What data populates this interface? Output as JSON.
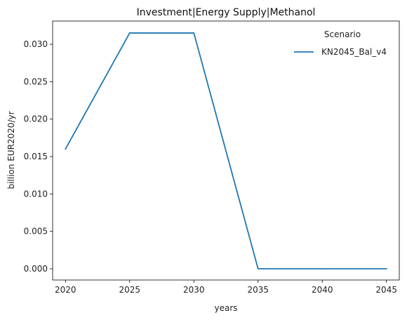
{
  "chart_data": {
    "type": "line",
    "title": "Investment|Energy Supply|Methanol",
    "xlabel": "years",
    "ylabel": "billion EUR2020/yr",
    "x": [
      2020,
      2025,
      2030,
      2035,
      2040,
      2045
    ],
    "xticks": [
      "2020",
      "2025",
      "2030",
      "2035",
      "2040",
      "2045"
    ],
    "yticks": [
      "0.000",
      "0.005",
      "0.010",
      "0.015",
      "0.020",
      "0.025",
      "0.030"
    ],
    "ytick_values": [
      0.0,
      0.005,
      0.01,
      0.015,
      0.02,
      0.025,
      0.03
    ],
    "xlim": [
      2019,
      2046
    ],
    "ylim": [
      -0.0015,
      0.0331
    ],
    "grid": false,
    "legend": {
      "title": "Scenario",
      "placement": "top-right"
    },
    "series": [
      {
        "name": "KN2045_Bal_v4",
        "color": "#1f77b4",
        "values": [
          0.016,
          0.0315,
          0.0315,
          0.0,
          0.0,
          0.0
        ]
      }
    ]
  }
}
